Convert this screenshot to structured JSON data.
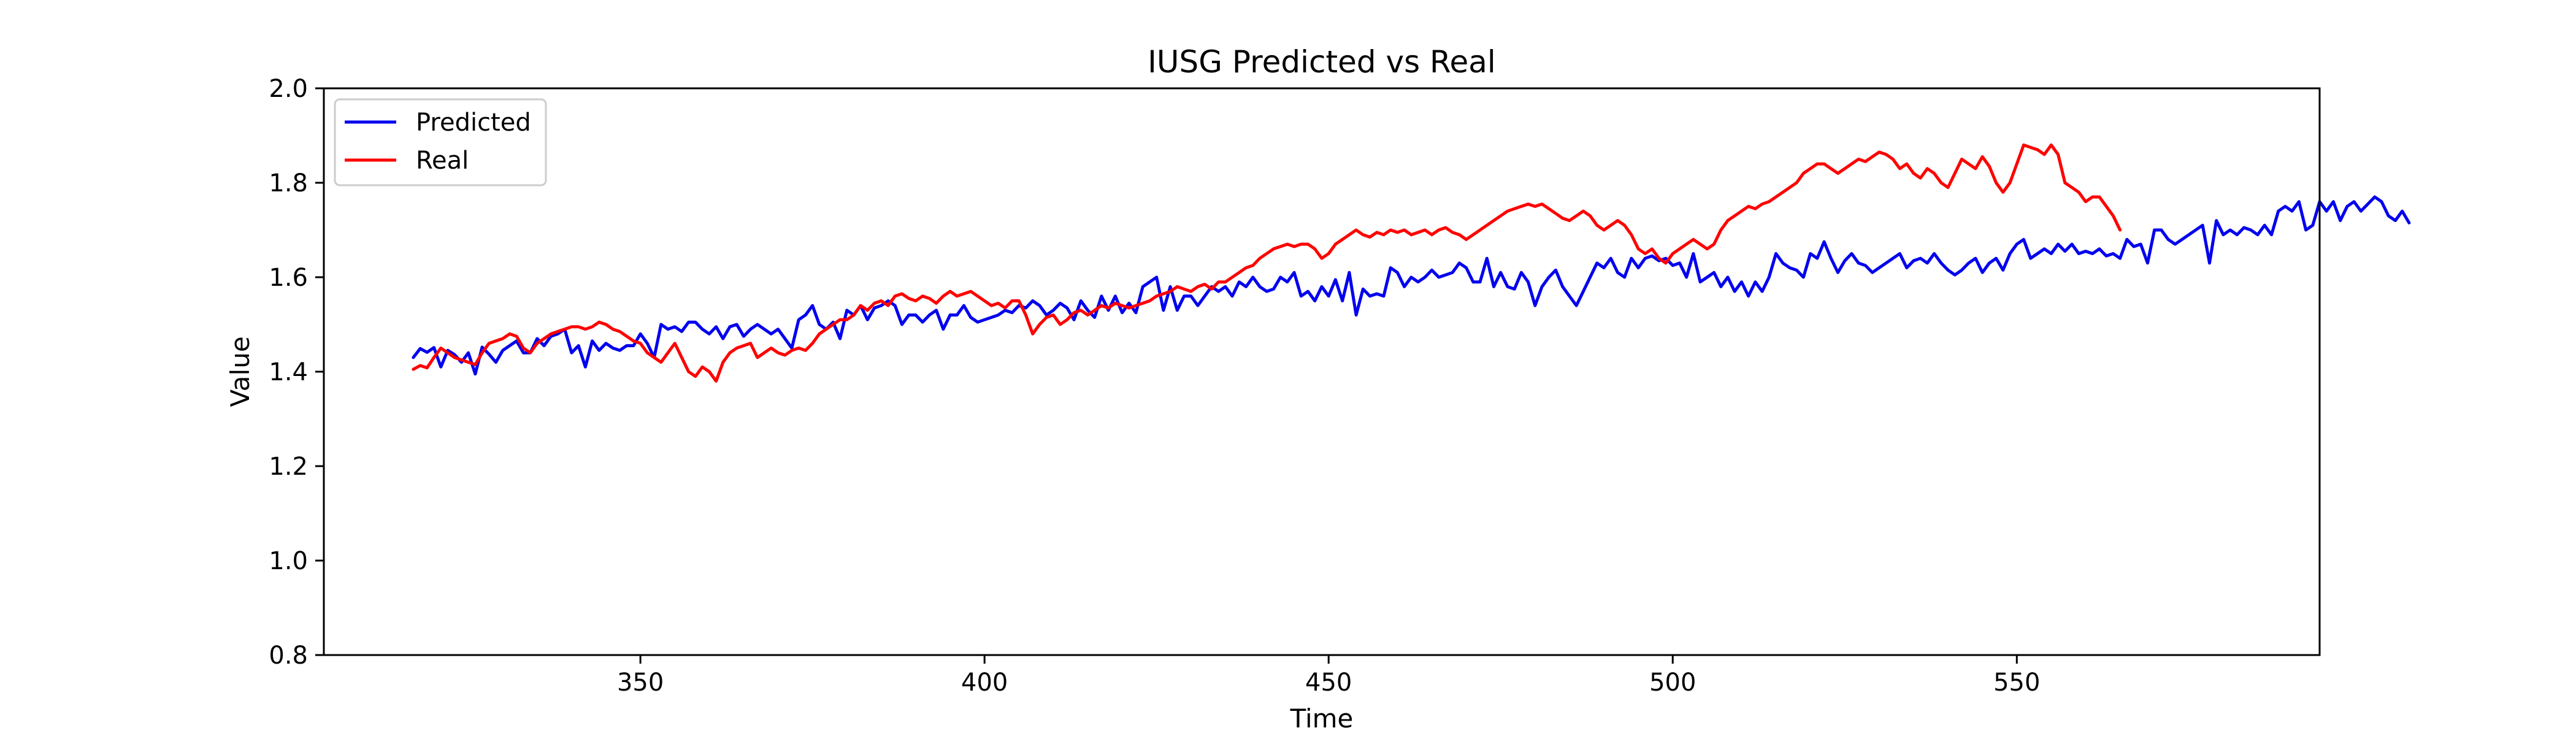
{
  "chart_data": {
    "type": "line",
    "title": "IUSG Predicted vs Real",
    "xlabel": "Time",
    "ylabel": "Value",
    "xlim": [
      304,
      594
    ],
    "ylim": [
      0.8,
      2.0
    ],
    "xticks": [
      350,
      400,
      450,
      500,
      550
    ],
    "yticks": [
      0.8,
      1.0,
      1.2,
      1.4,
      1.6,
      1.8,
      2.0
    ],
    "xtick_labels": [
      "350",
      "400",
      "450",
      "500",
      "550"
    ],
    "ytick_labels": [
      "0.8",
      "1.0",
      "1.2",
      "1.4",
      "1.6",
      "1.8",
      "2.0"
    ],
    "grid": false,
    "legend_position": "upper-left",
    "x_start": 317,
    "x_step": 1,
    "series": [
      {
        "name": "Predicted",
        "color": "#0000ee",
        "values": [
          1.43,
          1.449,
          1.441,
          1.451,
          1.41,
          1.445,
          1.436,
          1.42,
          1.44,
          1.395,
          1.452,
          1.437,
          1.42,
          1.445,
          1.455,
          1.465,
          1.44,
          1.44,
          1.47,
          1.455,
          1.475,
          1.48,
          1.49,
          1.44,
          1.455,
          1.41,
          1.465,
          1.445,
          1.46,
          1.45,
          1.445,
          1.455,
          1.455,
          1.48,
          1.46,
          1.43,
          1.5,
          1.49,
          1.495,
          1.485,
          1.505,
          1.505,
          1.49,
          1.48,
          1.495,
          1.47,
          1.495,
          1.5,
          1.475,
          1.49,
          1.5,
          1.49,
          1.48,
          1.49,
          1.47,
          1.45,
          1.51,
          1.52,
          1.54,
          1.5,
          1.49,
          1.505,
          1.47,
          1.53,
          1.52,
          1.54,
          1.51,
          1.535,
          1.54,
          1.55,
          1.54,
          1.5,
          1.52,
          1.52,
          1.505,
          1.52,
          1.53,
          1.49,
          1.52,
          1.52,
          1.54,
          1.515,
          1.505,
          1.51,
          1.515,
          1.52,
          1.53,
          1.525,
          1.54,
          1.535,
          1.55,
          1.54,
          1.52,
          1.53,
          1.545,
          1.535,
          1.51,
          1.55,
          1.53,
          1.515,
          1.56,
          1.53,
          1.56,
          1.525,
          1.545,
          1.525,
          1.58,
          1.59,
          1.6,
          1.53,
          1.58,
          1.53,
          1.56,
          1.56,
          1.54,
          1.56,
          1.58,
          1.57,
          1.58,
          1.56,
          1.59,
          1.58,
          1.6,
          1.58,
          1.57,
          1.575,
          1.6,
          1.59,
          1.61,
          1.56,
          1.57,
          1.55,
          1.58,
          1.56,
          1.595,
          1.55,
          1.61,
          1.52,
          1.575,
          1.56,
          1.565,
          1.56,
          1.62,
          1.61,
          1.58,
          1.6,
          1.59,
          1.6,
          1.615,
          1.6,
          1.605,
          1.61,
          1.63,
          1.62,
          1.59,
          1.59,
          1.64,
          1.58,
          1.61,
          1.58,
          1.575,
          1.61,
          1.59,
          1.54,
          1.58,
          1.6,
          1.615,
          1.58,
          1.56,
          1.54,
          1.57,
          1.6,
          1.63,
          1.62,
          1.64,
          1.61,
          1.6,
          1.64,
          1.62,
          1.64,
          1.645,
          1.635,
          1.64,
          1.625,
          1.63,
          1.6,
          1.65,
          1.59,
          1.6,
          1.61,
          1.58,
          1.6,
          1.57,
          1.59,
          1.56,
          1.59,
          1.57,
          1.6,
          1.65,
          1.63,
          1.62,
          1.615,
          1.6,
          1.65,
          1.64,
          1.675,
          1.64,
          1.61,
          1.635,
          1.65,
          1.63,
          1.625,
          1.61,
          1.62,
          1.63,
          1.64,
          1.65,
          1.62,
          1.635,
          1.64,
          1.63,
          1.65,
          1.63,
          1.615,
          1.605,
          1.615,
          1.63,
          1.64,
          1.61,
          1.63,
          1.64,
          1.615,
          1.65,
          1.67,
          1.68,
          1.64,
          1.65,
          1.66,
          1.65,
          1.67,
          1.655,
          1.67,
          1.65,
          1.655,
          1.65,
          1.66,
          1.645,
          1.65,
          1.64,
          1.68,
          1.665,
          1.67,
          1.63,
          1.7,
          1.7,
          1.68,
          1.67,
          1.68,
          1.69,
          1.7,
          1.71,
          1.63,
          1.72,
          1.69,
          1.7,
          1.69,
          1.705,
          1.7,
          1.69,
          1.71,
          1.69,
          1.74,
          1.75,
          1.74,
          1.76,
          1.7,
          1.71,
          1.76,
          1.74,
          1.76,
          1.72,
          1.75,
          1.76,
          1.74,
          1.755,
          1.77,
          1.76,
          1.73,
          1.72,
          1.74,
          1.715
        ]
      },
      {
        "name": "Real",
        "color": "#ff0000",
        "values": [
          1.405,
          1.413,
          1.408,
          1.43,
          1.45,
          1.44,
          1.43,
          1.425,
          1.42,
          1.415,
          1.44,
          1.46,
          1.465,
          1.47,
          1.48,
          1.475,
          1.45,
          1.44,
          1.46,
          1.47,
          1.48,
          1.485,
          1.49,
          1.495,
          1.495,
          1.49,
          1.495,
          1.505,
          1.5,
          1.49,
          1.485,
          1.475,
          1.465,
          1.46,
          1.44,
          1.43,
          1.42,
          1.44,
          1.46,
          1.43,
          1.4,
          1.39,
          1.41,
          1.4,
          1.38,
          1.42,
          1.44,
          1.45,
          1.455,
          1.46,
          1.43,
          1.44,
          1.45,
          1.44,
          1.435,
          1.445,
          1.45,
          1.445,
          1.46,
          1.48,
          1.49,
          1.5,
          1.51,
          1.51,
          1.52,
          1.54,
          1.53,
          1.545,
          1.55,
          1.54,
          1.56,
          1.565,
          1.555,
          1.55,
          1.56,
          1.555,
          1.545,
          1.56,
          1.57,
          1.56,
          1.565,
          1.57,
          1.56,
          1.55,
          1.54,
          1.545,
          1.535,
          1.55,
          1.55,
          1.52,
          1.48,
          1.5,
          1.515,
          1.52,
          1.5,
          1.51,
          1.525,
          1.53,
          1.52,
          1.53,
          1.54,
          1.535,
          1.545,
          1.54,
          1.535,
          1.54,
          1.545,
          1.55,
          1.56,
          1.565,
          1.57,
          1.58,
          1.575,
          1.57,
          1.58,
          1.585,
          1.575,
          1.59,
          1.59,
          1.6,
          1.61,
          1.62,
          1.625,
          1.64,
          1.65,
          1.66,
          1.665,
          1.67,
          1.665,
          1.67,
          1.67,
          1.66,
          1.64,
          1.65,
          1.67,
          1.68,
          1.69,
          1.7,
          1.69,
          1.685,
          1.695,
          1.69,
          1.7,
          1.695,
          1.7,
          1.69,
          1.695,
          1.7,
          1.69,
          1.7,
          1.705,
          1.695,
          1.69,
          1.68,
          1.69,
          1.7,
          1.71,
          1.72,
          1.73,
          1.74,
          1.745,
          1.75,
          1.755,
          1.75,
          1.755,
          1.745,
          1.735,
          1.725,
          1.72,
          1.73,
          1.74,
          1.73,
          1.71,
          1.7,
          1.71,
          1.72,
          1.71,
          1.69,
          1.66,
          1.65,
          1.66,
          1.64,
          1.63,
          1.65,
          1.66,
          1.67,
          1.68,
          1.67,
          1.66,
          1.67,
          1.7,
          1.72,
          1.73,
          1.74,
          1.75,
          1.745,
          1.755,
          1.76,
          1.77,
          1.78,
          1.79,
          1.8,
          1.82,
          1.83,
          1.84,
          1.84,
          1.83,
          1.82,
          1.83,
          1.84,
          1.85,
          1.845,
          1.855,
          1.865,
          1.86,
          1.85,
          1.83,
          1.84,
          1.82,
          1.81,
          1.83,
          1.82,
          1.8,
          1.79,
          1.82,
          1.85,
          1.84,
          1.83,
          1.855,
          1.835,
          1.8,
          1.78,
          1.8,
          1.84,
          1.88,
          1.875,
          1.87,
          1.86,
          1.88,
          1.86,
          1.8,
          1.79,
          1.78,
          1.76,
          1.77,
          1.77,
          1.75,
          1.73,
          1.7
        ]
      }
    ]
  }
}
